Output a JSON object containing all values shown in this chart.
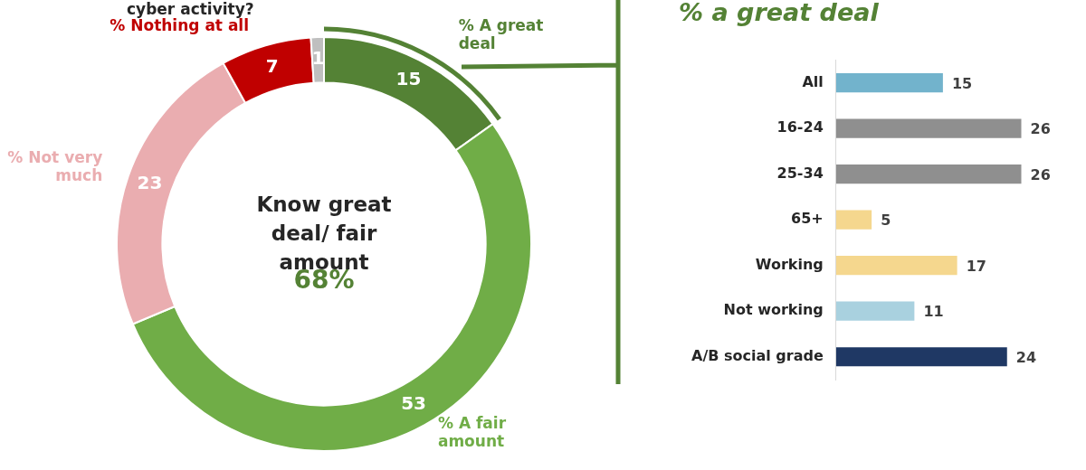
{
  "chart_data": [
    {
      "type": "donut",
      "title": "cyber activity?",
      "categories": [
        "% A great deal",
        "% A fair amount",
        "% Not very much",
        "% Nothing at all",
        null
      ],
      "values": [
        15,
        53,
        23,
        7,
        1
      ],
      "colors": [
        "#548235",
        "#70ad47",
        "#eaadb0",
        "#c00000",
        "#bfbfbf"
      ],
      "data_labels": true,
      "annotations": [
        "Know great deal/ fair amount",
        "68%"
      ]
    },
    {
      "type": "bar",
      "orientation": "horizontal",
      "title": "% a great deal",
      "categories": [
        "All",
        "16-24",
        "25-34",
        "65+",
        "Working",
        "Not working",
        "A/B social grade"
      ],
      "values": [
        15,
        26,
        26,
        5,
        17,
        11,
        24
      ],
      "colors": [
        "#72b3cc",
        "#8f8f8f",
        "#8f8f8f",
        "#f5d78e",
        "#f5d78e",
        "#a9d1df",
        "#1f3864"
      ],
      "tick_labels": "y",
      "data_labels": true
    }
  ]
}
